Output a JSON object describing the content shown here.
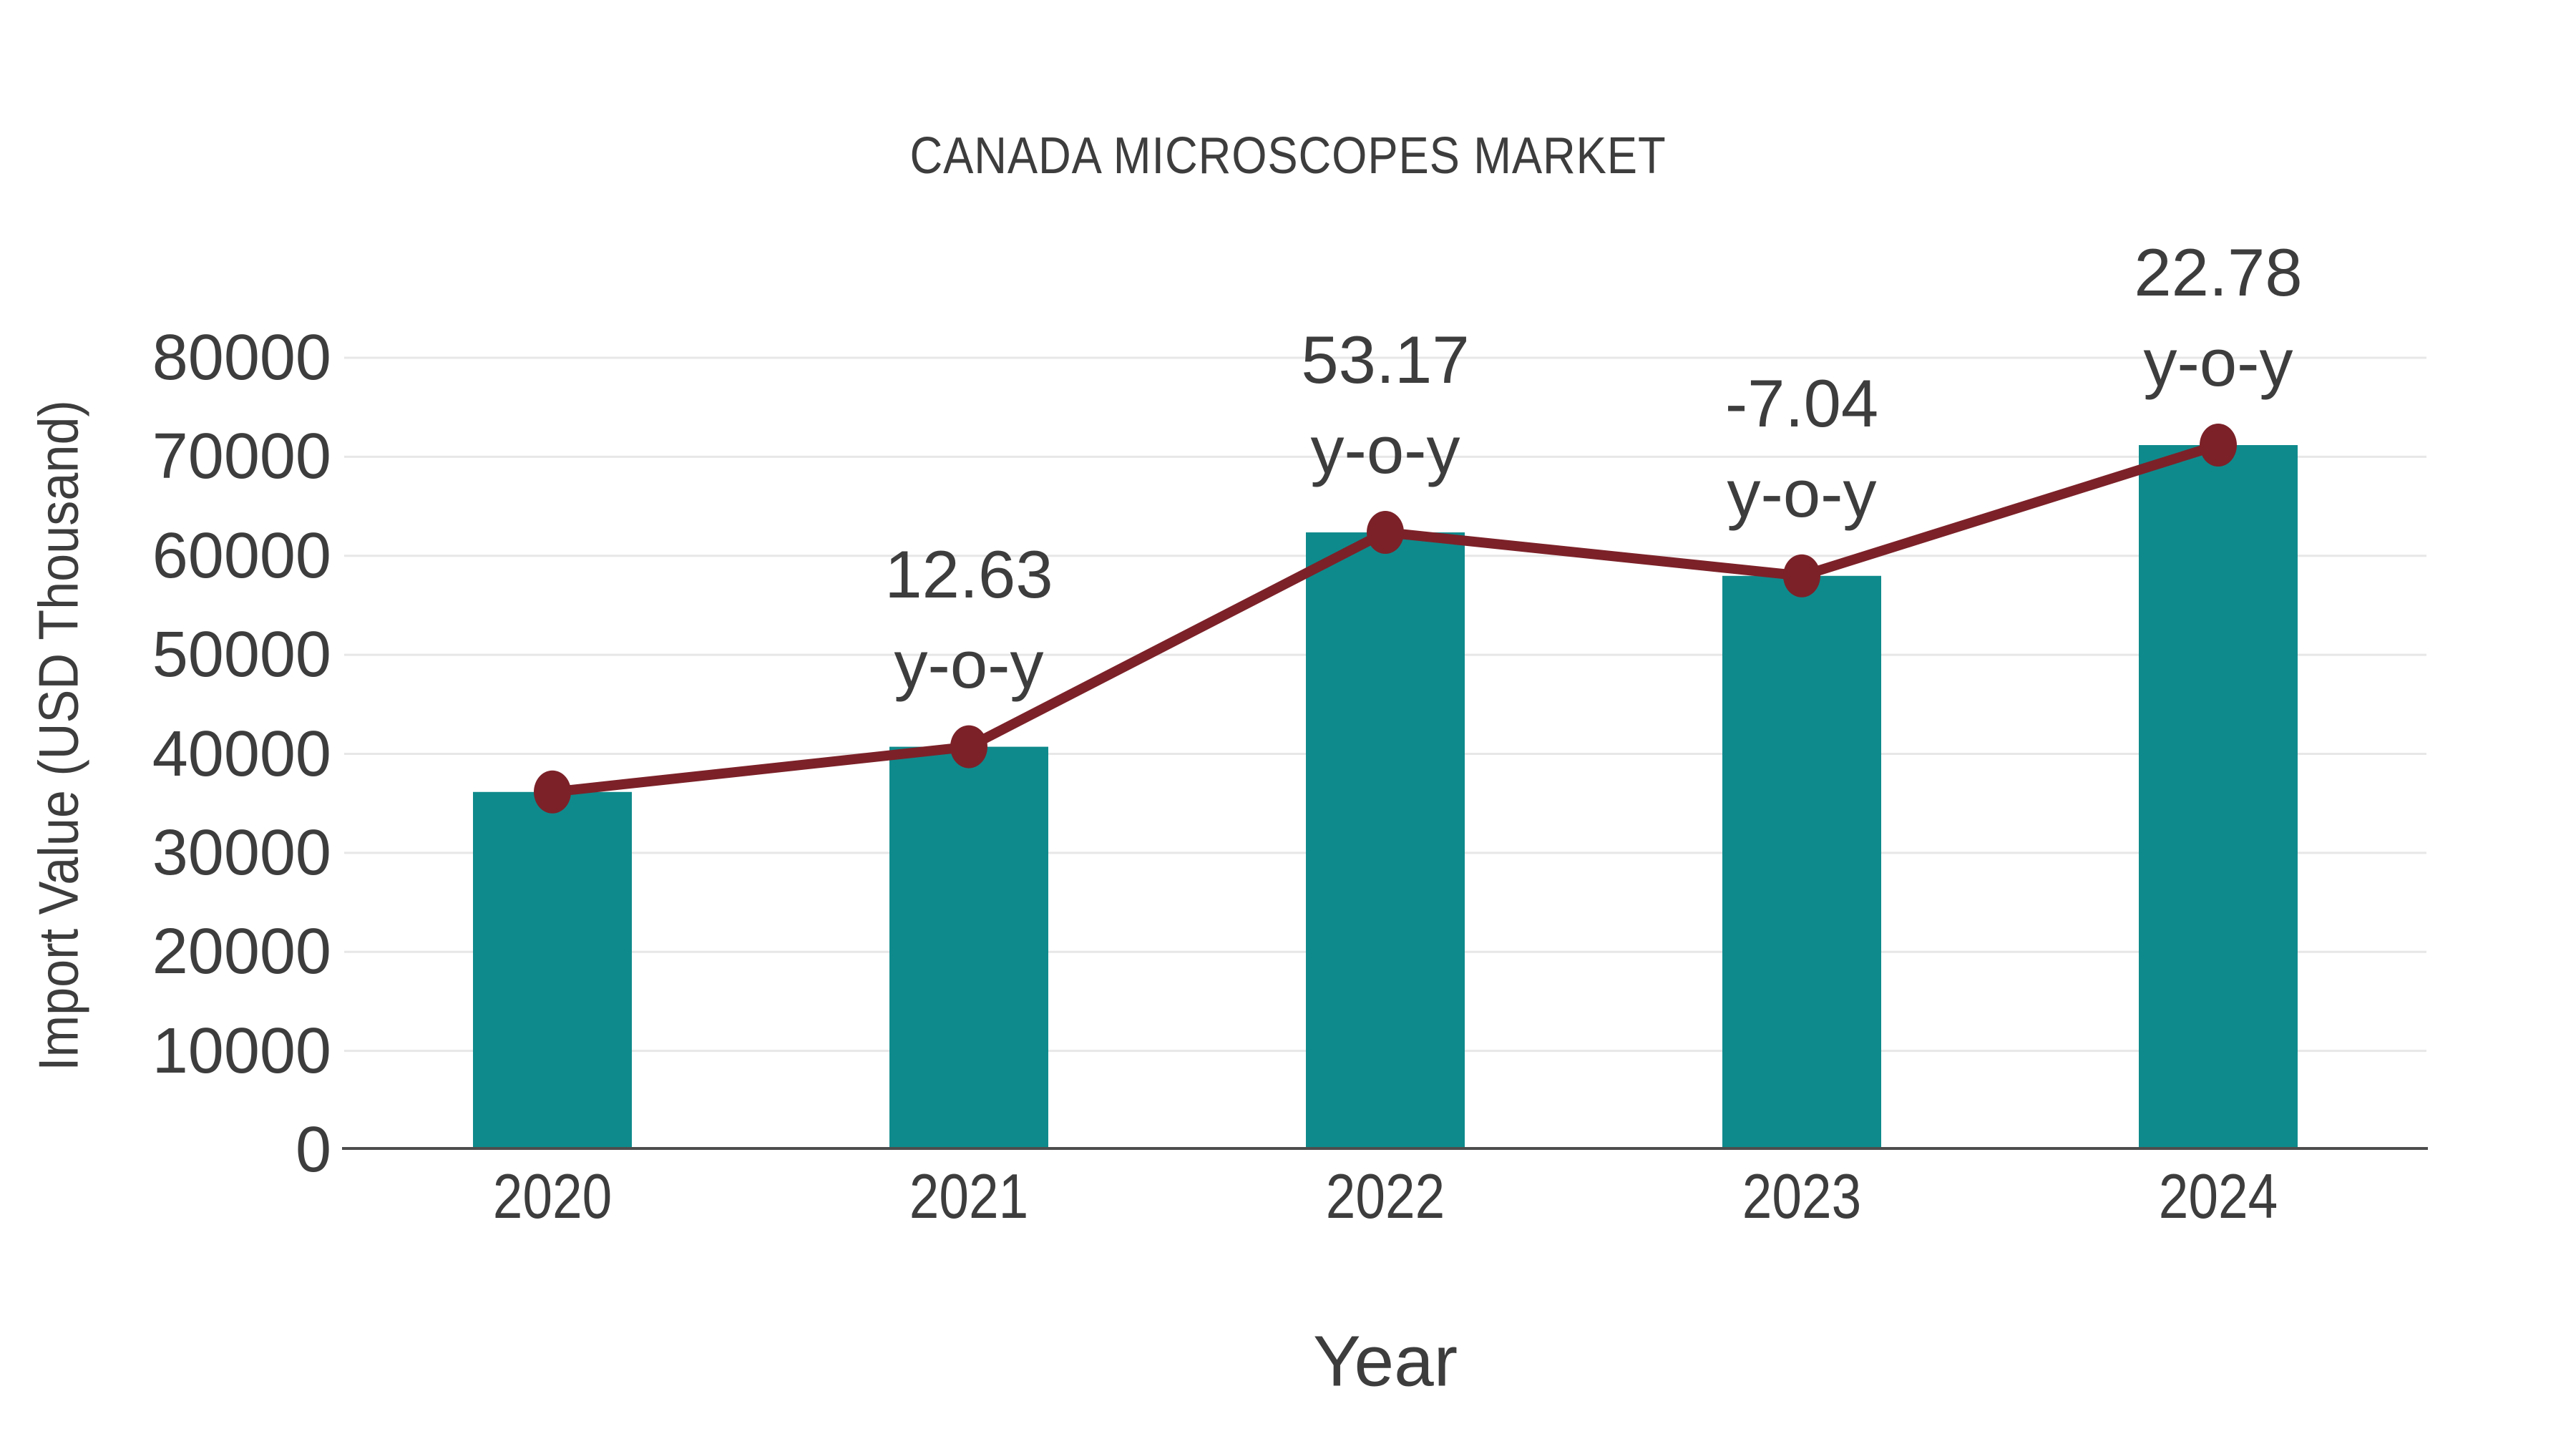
{
  "title": "CANADA MICROSCOPES MARKET",
  "chart_data": {
    "type": "bar",
    "subtype": "combo bar+line; line plots the same import values, annotated with y-o-y percent change",
    "title": "CANADA MICROSCOPES MARKET",
    "xlabel": "Year",
    "ylabel": "Import Value (USD Thousand)",
    "categories": [
      "2020",
      "2021",
      "2022",
      "2023",
      "2024"
    ],
    "series": [
      {
        "name": "Import Value (USD Thousand)",
        "type": "bar",
        "color": "#0f8a8c",
        "values": [
          36150,
          40716,
          62365,
          57975,
          71182
        ]
      },
      {
        "name": "Import Value trend",
        "type": "line",
        "color": "#7c2128",
        "values": [
          36150,
          40716,
          62365,
          57975,
          71182
        ]
      }
    ],
    "point_labels": [
      {
        "category": "2021",
        "value": "12.63",
        "suffix": "y-o-y"
      },
      {
        "category": "2022",
        "value": "53.17",
        "suffix": "y-o-y"
      },
      {
        "category": "2023",
        "value": "-7.04",
        "suffix": "y-o-y"
      },
      {
        "category": "2024",
        "value": "22.78",
        "suffix": "y-o-y"
      }
    ],
    "ylim": [
      0,
      80000
    ],
    "y_ticks": [
      "0",
      "10000",
      "20000",
      "30000",
      "40000",
      "50000",
      "60000",
      "70000",
      "80000"
    ],
    "grid": "horizontal",
    "legend": "none"
  },
  "colors": {
    "background": "#ffffff",
    "bar": "#0f8a8c",
    "line": "#7c2128",
    "grid": "#e7e7e7",
    "axis": "#4d4d4d",
    "text": "#3d3d3d"
  }
}
